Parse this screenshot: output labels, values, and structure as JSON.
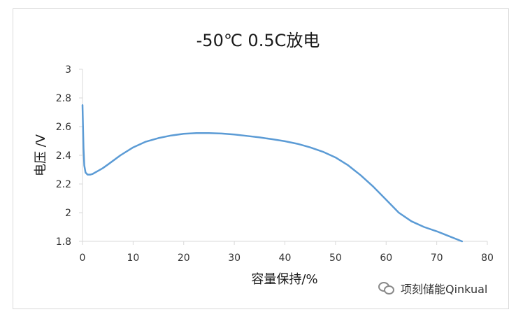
{
  "chart_data": {
    "type": "line",
    "title": "-50℃ 0.5C放电",
    "xlabel": "容量保持/%",
    "ylabel": "电压 /V",
    "xlim": [
      0,
      80
    ],
    "ylim": [
      1.8,
      3
    ],
    "xticks": [
      "0",
      "10",
      "20",
      "30",
      "40",
      "50",
      "60",
      "70",
      "80"
    ],
    "yticks": [
      "1.8",
      "2",
      "2.2",
      "2.4",
      "2.6",
      "2.8",
      "3"
    ],
    "grid": false,
    "legend": "none",
    "series": [
      {
        "color": "#5b9bd5",
        "x": [
          0,
          0.1,
          0.2,
          0.35,
          0.6,
          1,
          1.5,
          2,
          3,
          4,
          5,
          7.5,
          10,
          12.5,
          15,
          17.5,
          20,
          22.5,
          25,
          27.5,
          30,
          32.5,
          35,
          37.5,
          40,
          42.5,
          45,
          47.5,
          50,
          52.5,
          55,
          57.5,
          60,
          62.5,
          65,
          67.5,
          70,
          72.5,
          75
        ],
        "y": [
          2.75,
          2.6,
          2.45,
          2.33,
          2.28,
          2.265,
          2.265,
          2.27,
          2.29,
          2.31,
          2.335,
          2.4,
          2.455,
          2.495,
          2.52,
          2.538,
          2.55,
          2.555,
          2.555,
          2.552,
          2.545,
          2.535,
          2.525,
          2.512,
          2.498,
          2.48,
          2.455,
          2.425,
          2.385,
          2.33,
          2.26,
          2.18,
          2.09,
          2.0,
          1.94,
          1.9,
          1.87,
          1.835,
          1.8
        ]
      }
    ]
  },
  "watermark": {
    "text": "项刻储能Qinkual",
    "icon": "wechat-icon"
  }
}
